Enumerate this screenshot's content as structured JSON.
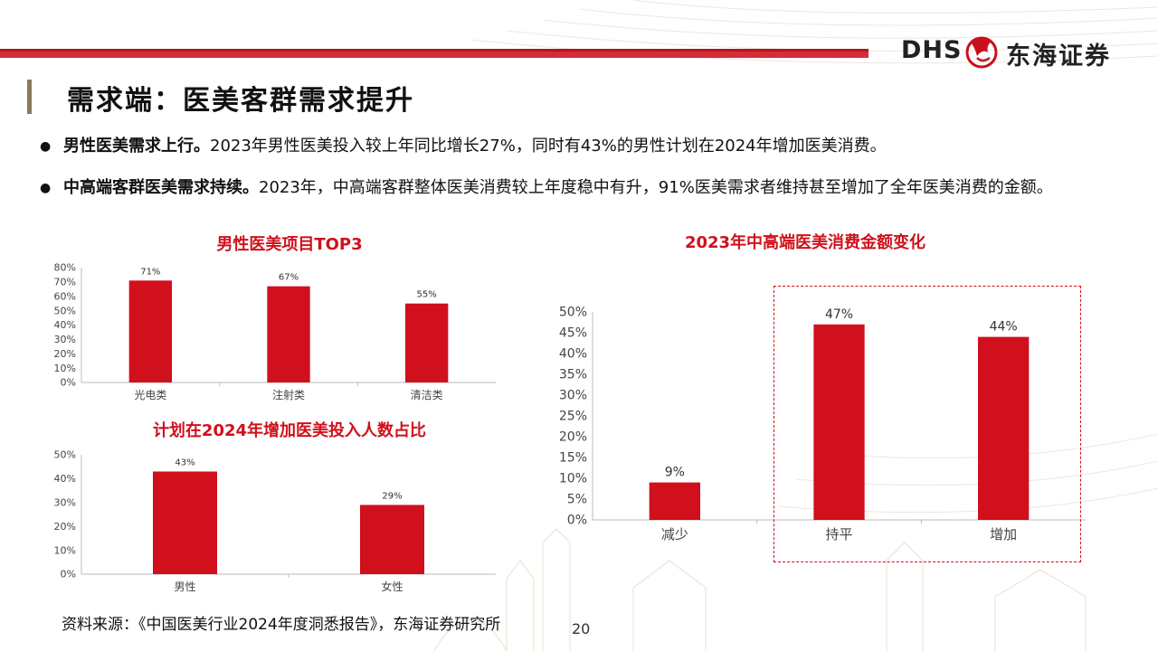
{
  "header": {
    "title": "需求端：医美客群需求提升",
    "logo_en": "DHS",
    "logo_cn": "东海证券"
  },
  "bullets": [
    {
      "bold": "男性医美需求上行。",
      "text": "2023年男性医美投入较上年同比增长27%，同时有43%的男性计划在2024年增加医美消费。"
    },
    {
      "bold": "中高端客群医美需求持续。",
      "text": "2023年，中高端客群整体医美消费较上年度稳中有升，91%医美需求者维持甚至增加了全年医美消费的金额。"
    }
  ],
  "colors": {
    "bar": "#d0101c",
    "title_red": "#d0101c",
    "accent": "#b9151c"
  },
  "chart_data": [
    {
      "type": "bar",
      "title": "男性医美项目TOP3",
      "categories": [
        "光电类",
        "注射类",
        "清洁类"
      ],
      "values": [
        71,
        67,
        55
      ],
      "labels": [
        "71%",
        "67%",
        "55%"
      ],
      "ylim": [
        0,
        80
      ],
      "yticks": [
        "0%",
        "10%",
        "20%",
        "30%",
        "40%",
        "50%",
        "60%",
        "70%",
        "80%"
      ],
      "xlabel": "",
      "ylabel": "",
      "grid": false
    },
    {
      "type": "bar",
      "title": "计划在2024年增加医美投入人数占比",
      "categories": [
        "男性",
        "女性"
      ],
      "values": [
        43,
        29
      ],
      "labels": [
        "43%",
        "29%"
      ],
      "ylim": [
        0,
        50
      ],
      "yticks": [
        "0%",
        "10%",
        "20%",
        "30%",
        "40%",
        "50%"
      ],
      "xlabel": "",
      "ylabel": "",
      "grid": false
    },
    {
      "type": "bar",
      "title": "2023年中高端医美消费金额变化",
      "categories": [
        "减少",
        "持平",
        "增加"
      ],
      "values": [
        9,
        47,
        44
      ],
      "labels": [
        "9%",
        "47%",
        "44%"
      ],
      "ylim": [
        0,
        50
      ],
      "yticks": [
        "0%",
        "5%",
        "10%",
        "15%",
        "20%",
        "25%",
        "30%",
        "35%",
        "40%",
        "45%",
        "50%"
      ],
      "xlabel": "",
      "ylabel": "",
      "grid": false
    }
  ],
  "footer": {
    "source": "资料来源：《中国医美行业2024年度洞悉报告》，东海证券研究所",
    "page": "20"
  }
}
